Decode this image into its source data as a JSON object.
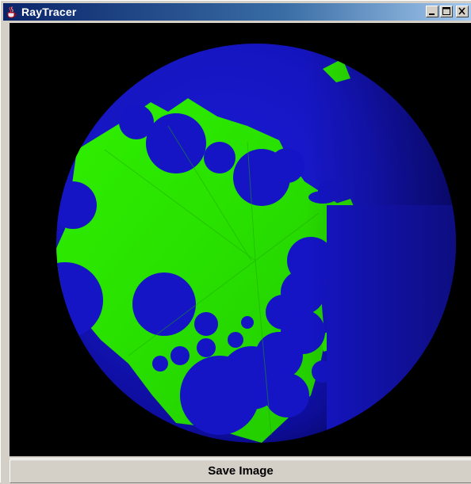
{
  "window": {
    "title": "RayTracer",
    "icon": "java-cup-icon"
  },
  "controls": {
    "minimize_icon": "minimize-icon",
    "maximize_icon": "maximize-icon",
    "close_icon": "close-icon"
  },
  "render": {
    "background_color": "#000000",
    "sphere_color": "#1a1acc",
    "pattern_color": "#33ee00"
  },
  "toolbar": {
    "save_label": "Save Image"
  }
}
